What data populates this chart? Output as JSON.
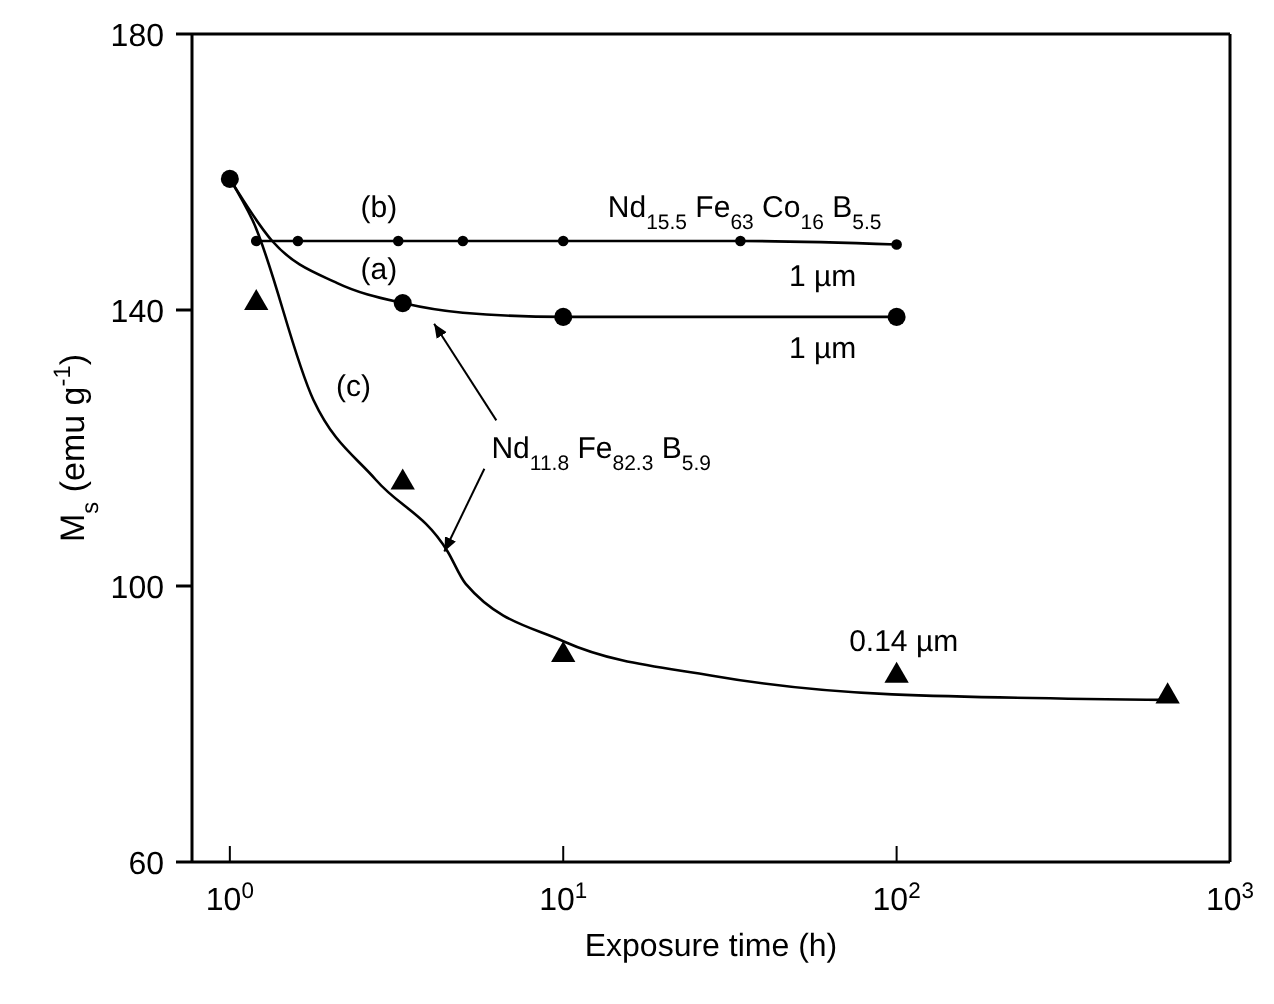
{
  "chart_data": {
    "type": "line",
    "xlabel": "Exposure time (h)",
    "ylabel": "M$_{s}$ (emu g$^{-1}$)",
    "log": "x",
    "xlim": [
      0.77,
      1000
    ],
    "xticks": [
      {
        "value": 1,
        "label": "10$^{0}$"
      },
      {
        "value": 10,
        "label": "10$^{1}$"
      },
      {
        "value": 100,
        "label": "10$^{2}$"
      },
      {
        "value": 1000,
        "label": "10$^{3}$"
      }
    ],
    "ylim": [
      60,
      180
    ],
    "yticks": [
      60,
      100,
      140,
      180
    ],
    "series": [
      {
        "type": "line",
        "marker": "none",
        "color": "#000000",
        "x": [
          1,
          1.34,
          2.1,
          3.3,
          5,
          10,
          100
        ],
        "values": [
          159,
          150,
          143.9,
          141,
          139.6,
          139,
          139
        ]
      },
      {
        "type": "scatter",
        "marker": "circle",
        "color": "#000000",
        "x": [
          1,
          3.3,
          10,
          100
        ],
        "values": [
          159,
          141,
          139,
          139
        ]
      },
      {
        "type": "line",
        "marker": "circle",
        "color": "#000000",
        "x": [
          1.2,
          1.6,
          3.2,
          5,
          10,
          34,
          100
        ],
        "values": [
          150,
          150,
          150,
          150,
          150,
          150,
          149.5
        ]
      },
      {
        "type": "line",
        "marker": "none",
        "color": "#000000",
        "x": [
          1,
          1.17,
          1.78,
          2.74,
          4.5,
          5.1,
          10,
          28,
          97,
          650
        ],
        "values": [
          159,
          153,
          127,
          115.4,
          105,
          100.3,
          92,
          87,
          84.3,
          83.5
        ]
      },
      {
        "type": "scatter",
        "marker": "triangle",
        "color": "#000000",
        "x": [
          1.2,
          3.3,
          10,
          100,
          650
        ],
        "values": [
          141,
          115,
          90,
          87,
          84
        ]
      }
    ],
    "annotations": [
      "(b)",
      "(a)",
      "(c)",
      "Nd$_{15.5}$ Fe$_{63}$ Co$_{16}$ B$_{5.5}$",
      "1 µm",
      "1 µm",
      {
        "text": "Nd$_{11.8}$ Fe$_{82.3}$ B$_{5.9}$",
        "x": 4.4,
        "y": 105
      },
      "0.14 µm"
    ]
  }
}
